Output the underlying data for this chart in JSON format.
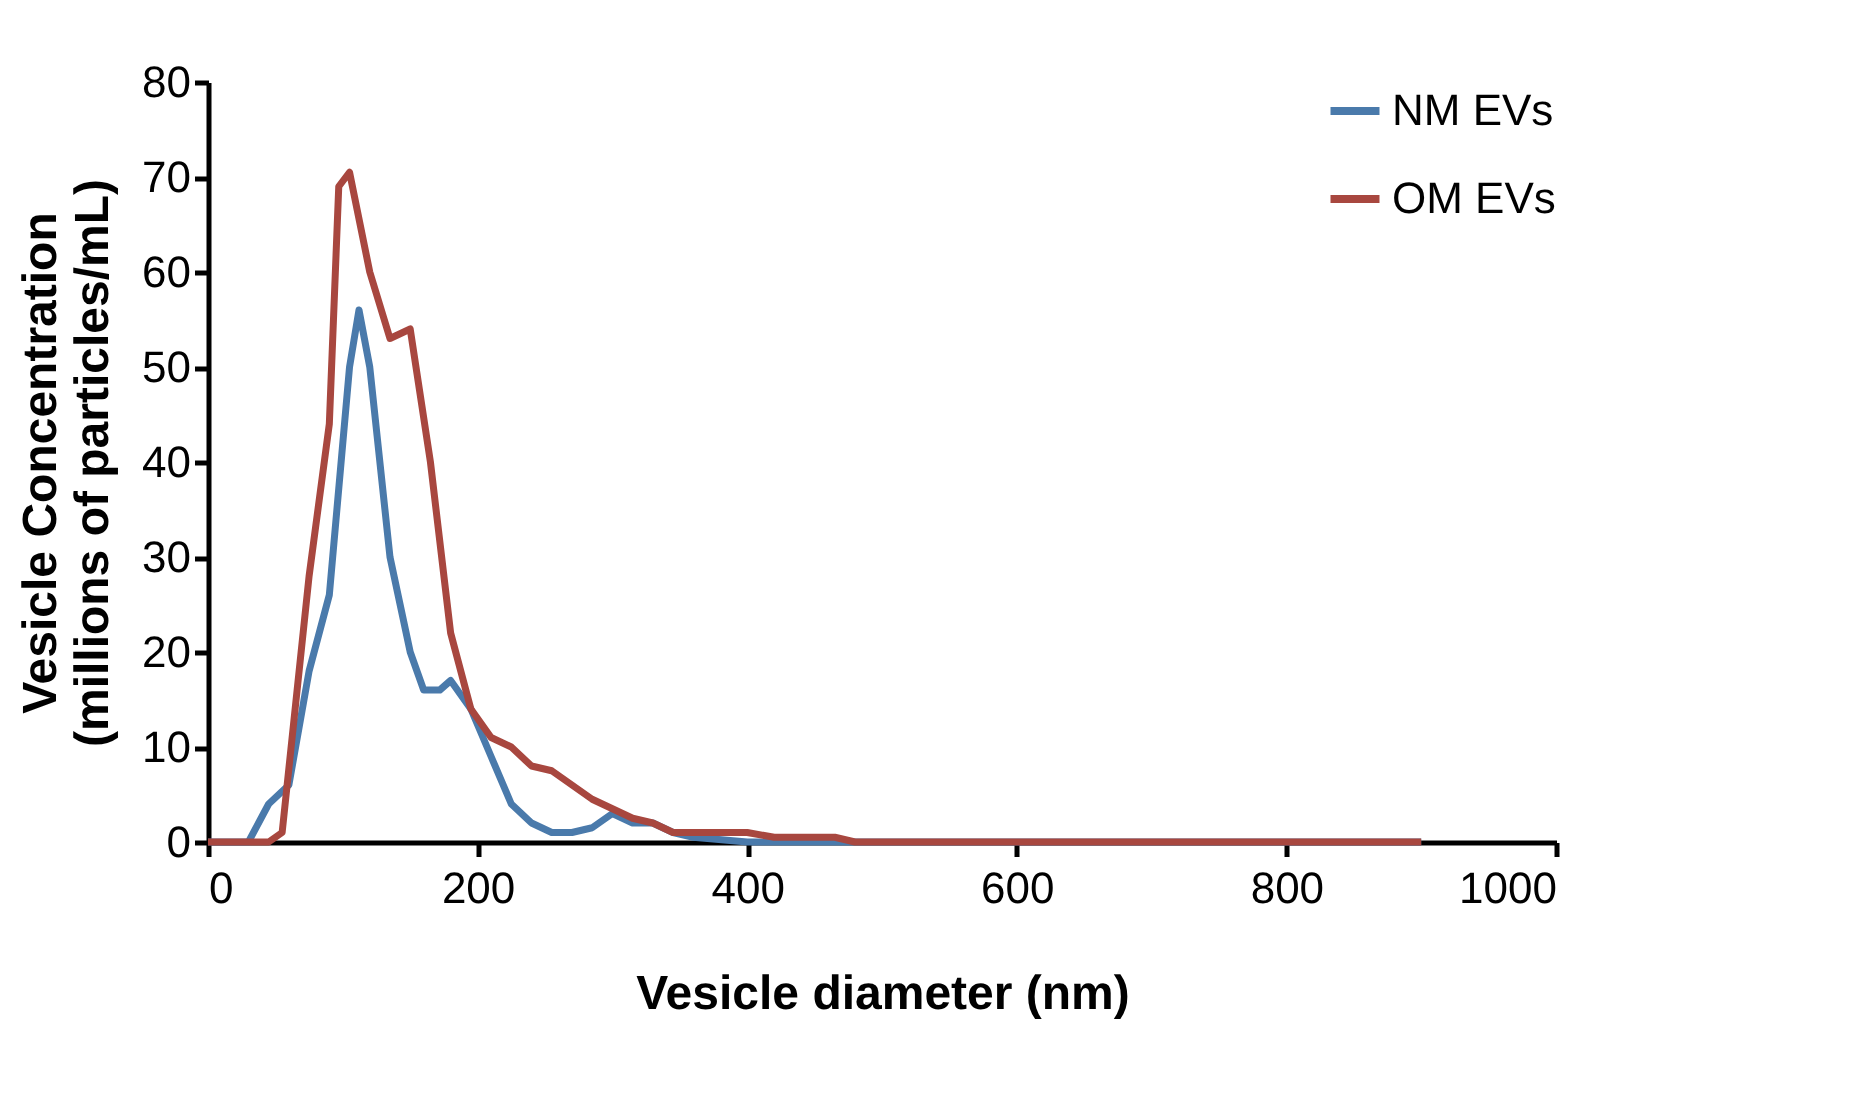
{
  "chart_data": {
    "type": "line",
    "xlabel": "Vesicle diameter (nm)",
    "ylabel": "Vesicle Concentration (millions of particles/mL)",
    "xlim": [
      0,
      1000
    ],
    "xticks": [
      0,
      200,
      400,
      600,
      800,
      1000
    ],
    "ylim": [
      0,
      80
    ],
    "yticks": [
      0,
      10,
      20,
      30,
      40,
      50,
      60,
      70,
      80
    ],
    "grid": false,
    "legend": "top right",
    "marker": "none",
    "line_style": "solid",
    "series": [
      {
        "name": "NM EVs",
        "color": "#4a7aab",
        "x": [
          0,
          30,
          45,
          60,
          75,
          90,
          105,
          112,
          120,
          135,
          150,
          160,
          172,
          180,
          195,
          210,
          225,
          240,
          255,
          270,
          285,
          300,
          315,
          330,
          345,
          360,
          400,
          900
        ],
        "values": [
          0,
          0,
          4,
          6,
          18,
          26,
          50,
          56,
          50,
          30,
          20,
          16,
          16,
          17,
          14,
          9,
          4,
          2,
          1,
          1,
          1.5,
          3,
          2,
          2,
          1,
          0.5,
          0,
          0
        ]
      },
      {
        "name": "OM EVs",
        "color": "#a8473f",
        "x": [
          0,
          45,
          55,
          75,
          90,
          97,
          105,
          120,
          135,
          150,
          165,
          180,
          195,
          210,
          225,
          240,
          255,
          270,
          285,
          300,
          315,
          330,
          345,
          400,
          420,
          465,
          480,
          900
        ],
        "values": [
          0,
          0,
          1,
          28,
          44,
          69,
          70.5,
          60,
          53,
          54,
          40,
          22,
          14,
          11,
          10,
          8,
          7.5,
          6,
          4.5,
          3.5,
          2.5,
          2,
          1,
          1,
          0.5,
          0.5,
          0,
          0
        ]
      }
    ]
  }
}
